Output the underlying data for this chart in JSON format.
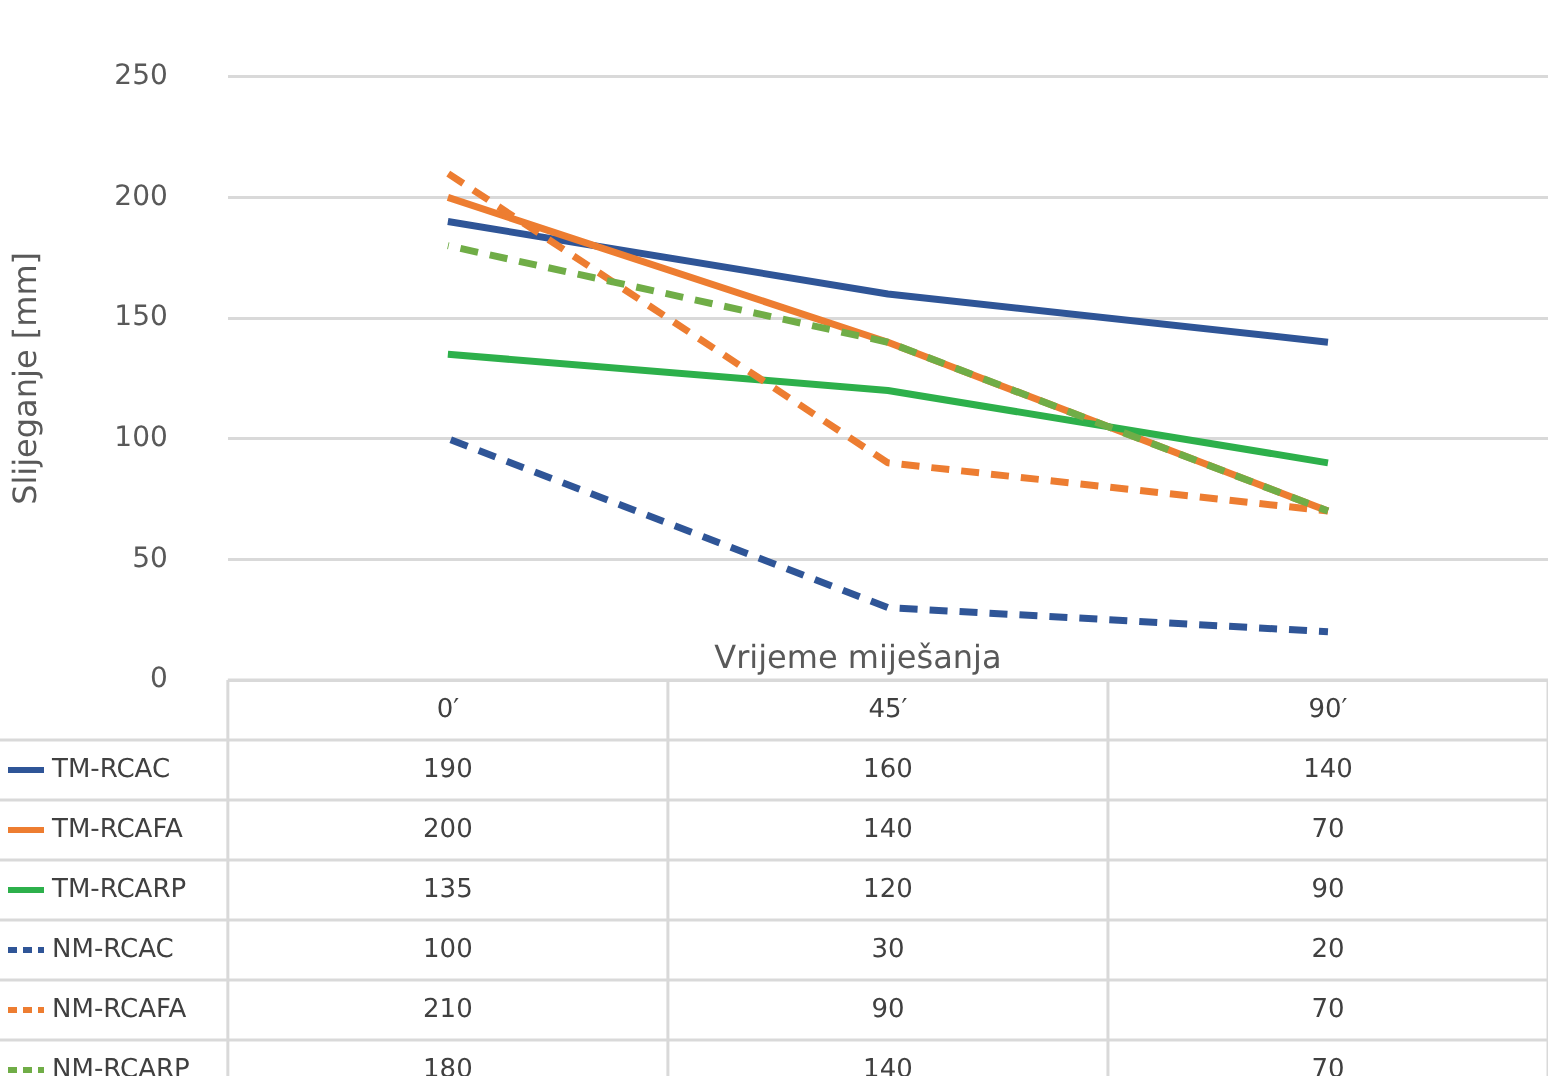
{
  "chart_data": {
    "type": "line",
    "xlabel": "Vrijeme miješanja",
    "ylabel": "Slijeganje [mm]",
    "categories": [
      "0′",
      "45′",
      "90′"
    ],
    "series": [
      {
        "name": "TM-RCAC",
        "color": "#2f5597",
        "values": [
          190,
          160,
          140
        ],
        "line_style": "solid"
      },
      {
        "name": "TM-RCAFA",
        "color": "#ed7d31",
        "values": [
          200,
          140,
          70
        ],
        "line_style": "solid"
      },
      {
        "name": "TM-RCARP",
        "color": "#2db04b",
        "values": [
          135,
          120,
          90
        ],
        "line_style": "solid"
      },
      {
        "name": "NM-RCAC",
        "color": "#2f5597",
        "values": [
          100,
          30,
          20
        ],
        "line_style": "dashed"
      },
      {
        "name": "NM-RCAFA",
        "color": "#ed7d31",
        "values": [
          210,
          90,
          70
        ],
        "line_style": "dashed"
      },
      {
        "name": "NM-RCARP",
        "color": "#70ad47",
        "values": [
          180,
          140,
          70
        ],
        "line_style": "dashed"
      }
    ],
    "ylim": [
      0,
      250
    ],
    "yticks": [
      0,
      50,
      100,
      150,
      200,
      250
    ],
    "grid": "y",
    "legend": "bottom left",
    "marker": "none",
    "data_labels": true
  }
}
